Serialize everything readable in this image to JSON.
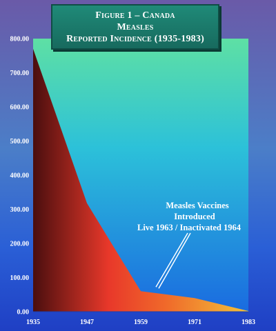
{
  "title_lines": [
    "Figure 1 – Canada",
    "Measles",
    "Reported Incidence (1935-1983)"
  ],
  "chart_data": {
    "type": "area",
    "title": "Figure 1 – Canada Measles Reported Incidence (1935-1983)",
    "xlabel": "",
    "ylabel": "",
    "x": [
      1935,
      1947,
      1959,
      1971,
      1983
    ],
    "x_tick_labels": [
      "1935",
      "1947",
      "1959",
      "1971",
      "1983"
    ],
    "y": [
      770,
      318,
      60,
      40,
      2
    ],
    "ylim": [
      0,
      800
    ],
    "y_tick_labels": [
      "0.00",
      "100.00",
      "200.00",
      "300.00",
      "400.00",
      "500.00",
      "600.00",
      "700.00",
      "800.00"
    ],
    "grid": false,
    "annotation": {
      "lines": [
        "Measles Vaccines",
        "Introduced",
        "Live 1963 / Inactivated 1964"
      ],
      "points_to": [
        1963,
        60
      ]
    },
    "colors": {
      "plot_gradient_top": "#5ee0a4",
      "plot_gradient_mid": "#2cc1d9",
      "plot_gradient_bottom": "#1a6be0",
      "area_left": "#4a0e0e",
      "area_mid": "#e8382a",
      "area_right": "#f2c23a"
    }
  }
}
